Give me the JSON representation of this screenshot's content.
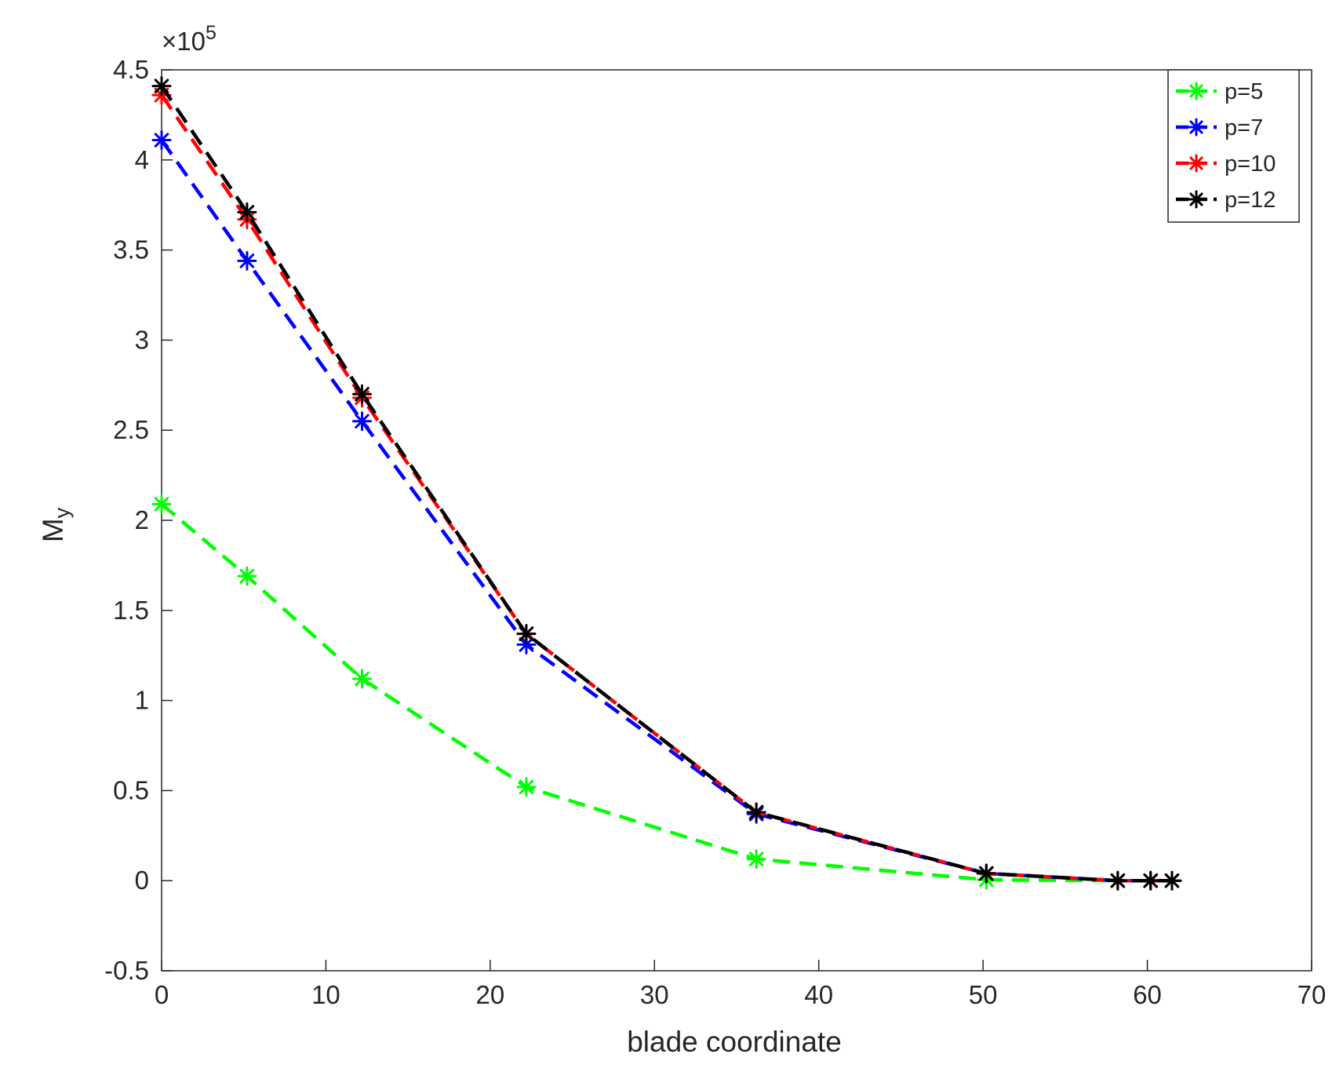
{
  "chart_data": {
    "type": "line",
    "title": "",
    "xlabel": "blade coordinate",
    "ylabel": "M",
    "ylabel_subscript": "y",
    "y_exponent_label": "×10",
    "y_exponent_power": "5",
    "y_exponent": 5,
    "xlim": [
      0,
      70
    ],
    "ylim": [
      -0.5,
      4.5
    ],
    "xticks": [
      0,
      10,
      20,
      30,
      40,
      50,
      60,
      70
    ],
    "xtick_labels": [
      "0",
      "10",
      "20",
      "30",
      "40",
      "50",
      "60",
      "70"
    ],
    "yticks": [
      -0.5,
      0,
      0.5,
      1,
      1.5,
      2,
      2.5,
      3,
      3.5,
      4,
      4.5
    ],
    "ytick_labels": [
      "-0.5",
      "0",
      "0.5",
      "1",
      "1.5",
      "2",
      "2.5",
      "3",
      "3.5",
      "4",
      "4.5"
    ],
    "grid": false,
    "legend_position": "top-right",
    "x": [
      0,
      5.2,
      12.2,
      22.2,
      36.2,
      50.2,
      58.2,
      60.2,
      61.5
    ],
    "series": [
      {
        "name": "p=5",
        "color": "#00ff00",
        "marker": "asterisk",
        "line_style": "dashed",
        "values": [
          2.09,
          1.69,
          1.12,
          0.52,
          0.12,
          0.005,
          0,
          0,
          0
        ]
      },
      {
        "name": "p=7",
        "color": "#0000ff",
        "marker": "asterisk",
        "line_style": "dashed",
        "values": [
          4.11,
          3.44,
          2.55,
          1.31,
          0.37,
          0.04,
          0,
          0,
          0
        ]
      },
      {
        "name": "p=10",
        "color": "#ff0000",
        "marker": "asterisk",
        "line_style": "dashed",
        "values": [
          4.36,
          3.67,
          2.68,
          1.37,
          0.38,
          0.04,
          0,
          0,
          0
        ]
      },
      {
        "name": "p=12",
        "color": "#000000",
        "marker": "asterisk",
        "line_style": "dashed",
        "values": [
          4.41,
          3.71,
          2.7,
          1.37,
          0.38,
          0.04,
          0,
          0,
          0
        ]
      }
    ]
  }
}
